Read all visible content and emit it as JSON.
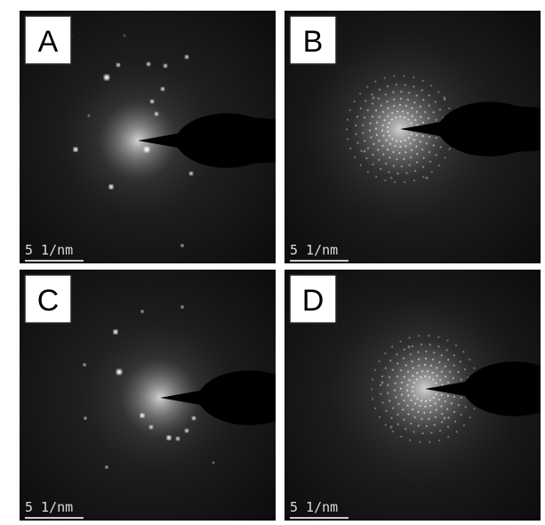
{
  "panels": [
    {
      "label": "A",
      "scale": "5 1/nm"
    },
    {
      "label": "B",
      "scale": "5 1/nm"
    },
    {
      "label": "C",
      "scale": "5 1/nm"
    },
    {
      "label": "D",
      "scale": "5 1/nm"
    }
  ]
}
